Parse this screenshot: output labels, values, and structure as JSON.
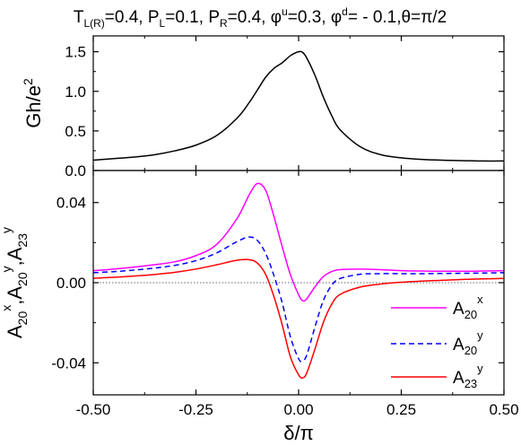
{
  "title": {
    "parts": [
      {
        "t": "T",
        "sub": "L(R)",
        "rest": "=0.4, "
      },
      {
        "t": "P",
        "sub": "L",
        "rest": "=0.1, "
      },
      {
        "t": "P",
        "sub": "R",
        "rest": "=0.4, "
      },
      {
        "t": "φ",
        "sup": "u",
        "rest": "=0.3, "
      },
      {
        "t": "φ",
        "sup": "d",
        "rest": "= - 0.1,θ=π/2"
      }
    ]
  },
  "chart_data": [
    {
      "type": "line",
      "panel": "top",
      "ylabel_main": "Gh/e",
      "ylabel_sup": "2",
      "xlim": [
        -0.5,
        0.5
      ],
      "ylim": [
        0.0,
        1.7
      ],
      "yticks": [
        0.0,
        0.5,
        1.0,
        1.5
      ],
      "ytick_labels": [
        "0.0",
        "0.5",
        "1.0",
        "1.5"
      ],
      "series": [
        {
          "color": "#000000",
          "dash": "none",
          "x": [
            -0.5,
            -0.45,
            -0.4,
            -0.35,
            -0.3,
            -0.25,
            -0.2,
            -0.15,
            -0.12,
            -0.1,
            -0.08,
            -0.06,
            -0.04,
            -0.02,
            0.0,
            0.01,
            0.02,
            0.04,
            0.06,
            0.08,
            0.1,
            0.15,
            0.2,
            0.25,
            0.3,
            0.35,
            0.4,
            0.45,
            0.5
          ],
          "y": [
            0.13,
            0.15,
            0.17,
            0.2,
            0.25,
            0.32,
            0.44,
            0.66,
            0.86,
            1.02,
            1.18,
            1.29,
            1.36,
            1.45,
            1.5,
            1.49,
            1.42,
            1.2,
            0.93,
            0.7,
            0.52,
            0.3,
            0.2,
            0.16,
            0.14,
            0.13,
            0.125,
            0.12,
            0.12
          ]
        }
      ]
    },
    {
      "type": "line",
      "panel": "bottom",
      "xlabel": "δ/π",
      "xlim": [
        -0.5,
        0.5
      ],
      "ylim": [
        -0.056,
        0.056
      ],
      "xticks": [
        -0.5,
        -0.25,
        0.0,
        0.25,
        0.5
      ],
      "xtick_labels": [
        "-0.50",
        "-0.25",
        "0.00",
        "0.25",
        "0.50"
      ],
      "yticks": [
        -0.04,
        0.0,
        0.04
      ],
      "ytick_labels": [
        "-0.04",
        "0.00",
        "0.04"
      ],
      "ylabel_parts": [
        {
          "t": "A",
          "sub": "20",
          "sup": "x",
          "rest": ","
        },
        {
          "t": "A",
          "sub": "20",
          "sup": "y",
          "rest": ","
        },
        {
          "t": "A",
          "sub": "23",
          "sup": "y",
          "rest": ""
        }
      ],
      "zero_line": true,
      "legend_position": "bottom-right",
      "series": [
        {
          "name": "A",
          "name_sub": "20",
          "name_sup": "x",
          "color": "#ff00ff",
          "dash": "none",
          "x": [
            -0.5,
            -0.45,
            -0.4,
            -0.35,
            -0.3,
            -0.25,
            -0.2,
            -0.15,
            -0.12,
            -0.1,
            -0.08,
            -0.06,
            -0.04,
            -0.02,
            0.0,
            0.01,
            0.02,
            0.04,
            0.06,
            0.08,
            0.1,
            0.15,
            0.2,
            0.25,
            0.3,
            0.35,
            0.4,
            0.45,
            0.5
          ],
          "y": [
            0.006,
            0.0068,
            0.0078,
            0.009,
            0.0105,
            0.0135,
            0.019,
            0.032,
            0.044,
            0.0495,
            0.046,
            0.033,
            0.018,
            0.004,
            -0.006,
            -0.009,
            -0.008,
            -0.002,
            0.003,
            0.0055,
            0.0065,
            0.0068,
            0.0065,
            0.006,
            0.0058,
            0.0057,
            0.0057,
            0.0058,
            0.006
          ]
        },
        {
          "name": "A",
          "name_sub": "20",
          "name_sup": "y",
          "color": "#0000ff",
          "dash": "6,4",
          "x": [
            -0.5,
            -0.45,
            -0.4,
            -0.35,
            -0.3,
            -0.25,
            -0.2,
            -0.15,
            -0.12,
            -0.1,
            -0.08,
            -0.06,
            -0.04,
            -0.02,
            0.0,
            0.01,
            0.02,
            0.04,
            0.06,
            0.08,
            0.1,
            0.15,
            0.2,
            0.25,
            0.3,
            0.35,
            0.4,
            0.45,
            0.5
          ],
          "y": [
            0.005,
            0.0055,
            0.0063,
            0.0073,
            0.0087,
            0.011,
            0.0148,
            0.0205,
            0.0228,
            0.021,
            0.0145,
            0.0035,
            -0.01,
            -0.027,
            -0.038,
            -0.039,
            -0.036,
            -0.022,
            -0.009,
            -0.0015,
            0.002,
            0.0042,
            0.0045,
            0.0045,
            0.0045,
            0.0046,
            0.0047,
            0.0048,
            0.005
          ]
        },
        {
          "name": "A",
          "name_sub": "23",
          "name_sup": "y",
          "color": "#ff0000",
          "dash": "none",
          "x": [
            -0.5,
            -0.45,
            -0.4,
            -0.35,
            -0.3,
            -0.25,
            -0.2,
            -0.15,
            -0.12,
            -0.1,
            -0.08,
            -0.06,
            -0.04,
            -0.02,
            0.0,
            0.01,
            0.02,
            0.04,
            0.06,
            0.08,
            0.1,
            0.15,
            0.2,
            0.25,
            0.3,
            0.35,
            0.4,
            0.45,
            0.5
          ],
          "y": [
            0.0022,
            0.0027,
            0.0033,
            0.0041,
            0.0052,
            0.0068,
            0.0089,
            0.0112,
            0.0115,
            0.0097,
            0.004,
            -0.007,
            -0.021,
            -0.037,
            -0.046,
            -0.0475,
            -0.045,
            -0.033,
            -0.02,
            -0.011,
            -0.006,
            -0.0022,
            -0.0007,
            0.0002,
            0.0008,
            0.0012,
            0.0016,
            0.0019,
            0.0021
          ]
        }
      ]
    }
  ]
}
